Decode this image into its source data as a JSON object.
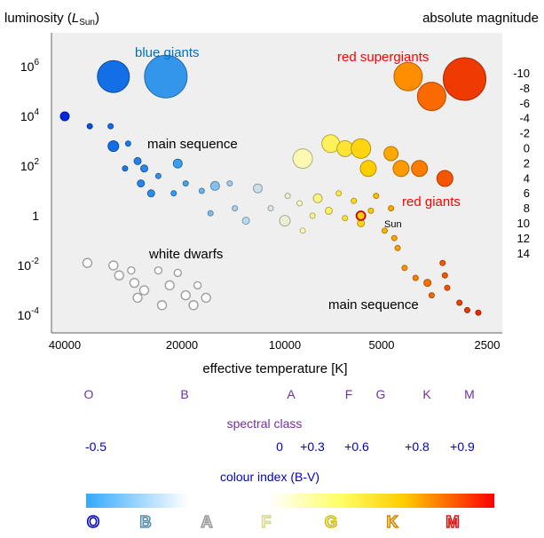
{
  "header": {
    "left_label_main": "luminosity  (",
    "left_label_L": "L",
    "left_label_sub": "Sun",
    "left_label_close": ")",
    "right_label": "absolute magnitude"
  },
  "axes": {
    "x_title": "effective temperature [K]",
    "x_ticks": [
      {
        "label": "40000",
        "value": 40000
      },
      {
        "label": "20000",
        "value": 20000
      },
      {
        "label": "10000",
        "value": 10000
      },
      {
        "label": "5000",
        "value": 5000
      },
      {
        "label": "2500",
        "value": 2500
      }
    ],
    "y_ticks": [
      {
        "base": "10",
        "exp": "6",
        "value": 6
      },
      {
        "base": "10",
        "exp": "4",
        "value": 4
      },
      {
        "base": "10",
        "exp": "2",
        "value": 2
      },
      {
        "base": "1",
        "exp": "",
        "value": 0
      },
      {
        "base": "10",
        "exp": "-2",
        "value": -2
      },
      {
        "base": "10",
        "exp": "-4",
        "value": -4
      }
    ],
    "magnitude_ticks": [
      "-10",
      "-8",
      "-6",
      "-4",
      "-2",
      "0",
      "2",
      "4",
      "6",
      "8",
      "10",
      "12",
      "14"
    ]
  },
  "region_labels": {
    "blue_giants": "blue giants",
    "red_supergiants": "red supergiants",
    "main_sequence_upper": "main sequence",
    "red_giants": "red giants",
    "white_dwarfs": "white dwarfs",
    "main_sequence_lower": "main sequence",
    "sun": "Sun"
  },
  "spectral": {
    "title": "spectral class",
    "classes": [
      "O",
      "B",
      "A",
      "F",
      "G",
      "K",
      "M"
    ]
  },
  "colour_index": {
    "title": "colour index (B-V)",
    "values": [
      "-0.5",
      "0",
      "+0.3",
      "+0.6",
      "+0.8",
      "+0.9"
    ]
  },
  "colours": {
    "panel": "#efefef",
    "purple": "#7030a0",
    "blue": "#0000cc",
    "red_label": "#ff0000",
    "blue_label": "#0070c0"
  },
  "stars": {
    "main_sequence": [
      {
        "temp": 40000,
        "log_l": 4.0,
        "r": 5
      },
      {
        "temp": 34500,
        "log_l": 3.6,
        "r": 3
      },
      {
        "temp": 30500,
        "log_l": 3.6,
        "r": 3
      },
      {
        "temp": 27500,
        "log_l": 2.9,
        "r": 3
      },
      {
        "temp": 30000,
        "log_l": 2.8,
        "r": 6
      },
      {
        "temp": 26000,
        "log_l": 2.2,
        "r": 4
      },
      {
        "temp": 28000,
        "log_l": 1.9,
        "r": 3
      },
      {
        "temp": 25000,
        "log_l": 1.9,
        "r": 4
      },
      {
        "temp": 20500,
        "log_l": 2.1,
        "r": 5
      },
      {
        "temp": 23000,
        "log_l": 1.6,
        "r": 3
      },
      {
        "temp": 19500,
        "log_l": 1.3,
        "r": 3
      },
      {
        "temp": 25500,
        "log_l": 1.3,
        "r": 4
      },
      {
        "temp": 24000,
        "log_l": 0.9,
        "r": 4
      },
      {
        "temp": 21000,
        "log_l": 0.9,
        "r": 3
      },
      {
        "temp": 17500,
        "log_l": 1.0,
        "r": 3
      },
      {
        "temp": 16000,
        "log_l": 1.2,
        "r": 5
      },
      {
        "temp": 14500,
        "log_l": 1.3,
        "r": 3
      },
      {
        "temp": 16500,
        "log_l": 0.1,
        "r": 3
      },
      {
        "temp": 14000,
        "log_l": 0.3,
        "r": 3
      },
      {
        "temp": 12000,
        "log_l": 1.1,
        "r": 5
      },
      {
        "temp": 13000,
        "log_l": -0.2,
        "r": 4
      },
      {
        "temp": 11000,
        "log_l": 0.3,
        "r": 3
      },
      {
        "temp": 10000,
        "log_l": -0.2,
        "r": 6
      },
      {
        "temp": 9000,
        "log_l": 0.5,
        "r": 3
      },
      {
        "temp": 9800,
        "log_l": 0.8,
        "r": 3
      },
      {
        "temp": 8800,
        "log_l": -0.6,
        "r": 3
      },
      {
        "temp": 8200,
        "log_l": 0.0,
        "r": 3
      },
      {
        "temp": 7900,
        "log_l": 0.7,
        "r": 5
      },
      {
        "temp": 7300,
        "log_l": 0.2,
        "r": 4
      },
      {
        "temp": 6800,
        "log_l": 0.9,
        "r": 3
      },
      {
        "temp": 6500,
        "log_l": -0.1,
        "r": 3
      },
      {
        "temp": 6100,
        "log_l": 0.6,
        "r": 3
      },
      {
        "temp": 5800,
        "log_l": -0.3,
        "r": 4
      },
      {
        "temp": 5400,
        "log_l": 0.2,
        "r": 3
      },
      {
        "temp": 5200,
        "log_l": 0.8,
        "r": 3
      },
      {
        "temp": 4900,
        "log_l": -0.6,
        "r": 3
      },
      {
        "temp": 4700,
        "log_l": 0.3,
        "r": 3
      },
      {
        "temp": 4600,
        "log_l": -0.9,
        "r": 3
      },
      {
        "temp": 4500,
        "log_l": -1.3,
        "r": 3
      },
      {
        "temp": 4300,
        "log_l": -2.1,
        "r": 3
      },
      {
        "temp": 4000,
        "log_l": -2.5,
        "r": 3
      },
      {
        "temp": 3700,
        "log_l": -2.7,
        "r": 4
      },
      {
        "temp": 3600,
        "log_l": -3.2,
        "r": 3
      },
      {
        "temp": 3350,
        "log_l": -1.9,
        "r": 3
      },
      {
        "temp": 3300,
        "log_l": -2.4,
        "r": 3
      },
      {
        "temp": 3250,
        "log_l": -2.9,
        "r": 3
      },
      {
        "temp": 3000,
        "log_l": -3.5,
        "r": 3
      },
      {
        "temp": 2850,
        "log_l": -3.8,
        "r": 3
      },
      {
        "temp": 2650,
        "log_l": -3.9,
        "r": 3
      }
    ],
    "white_dwarfs": [
      {
        "temp": 35000,
        "log_l": -1.9,
        "r": 5
      },
      {
        "temp": 30000,
        "log_l": -2.0,
        "r": 5
      },
      {
        "temp": 29000,
        "log_l": -2.4,
        "r": 5
      },
      {
        "temp": 27000,
        "log_l": -2.2,
        "r": 4
      },
      {
        "temp": 26500,
        "log_l": -2.7,
        "r": 5
      },
      {
        "temp": 26000,
        "log_l": -3.3,
        "r": 5
      },
      {
        "temp": 25000,
        "log_l": -3.0,
        "r": 5
      },
      {
        "temp": 23000,
        "log_l": -2.2,
        "r": 4
      },
      {
        "temp": 22500,
        "log_l": -3.6,
        "r": 5
      },
      {
        "temp": 21500,
        "log_l": -2.8,
        "r": 5
      },
      {
        "temp": 20500,
        "log_l": -2.3,
        "r": 4
      },
      {
        "temp": 19500,
        "log_l": -3.2,
        "r": 5
      },
      {
        "temp": 18500,
        "log_l": -3.6,
        "r": 5
      },
      {
        "temp": 18000,
        "log_l": -2.8,
        "r": 4
      },
      {
        "temp": 17000,
        "log_l": -3.3,
        "r": 5
      }
    ],
    "giants": [
      {
        "temp": 30000,
        "log_l": 5.6,
        "r": 18
      },
      {
        "temp": 22000,
        "log_l": 5.6,
        "r": 24
      },
      {
        "temp": 8800,
        "log_l": 2.3,
        "r": 11
      },
      {
        "temp": 7200,
        "log_l": 2.9,
        "r": 10
      },
      {
        "temp": 6500,
        "log_l": 2.7,
        "r": 9
      },
      {
        "temp": 5800,
        "log_l": 2.7,
        "r": 11
      },
      {
        "temp": 5500,
        "log_l": 1.9,
        "r": 9
      },
      {
        "temp": 4700,
        "log_l": 2.5,
        "r": 8
      },
      {
        "temp": 4400,
        "log_l": 1.9,
        "r": 9
      },
      {
        "temp": 3900,
        "log_l": 1.9,
        "r": 9
      },
      {
        "temp": 3300,
        "log_l": 1.5,
        "r": 9
      },
      {
        "temp": 4200,
        "log_l": 5.6,
        "r": 16
      },
      {
        "temp": 3600,
        "log_l": 4.8,
        "r": 16
      },
      {
        "temp": 2900,
        "log_l": 5.5,
        "r": 24
      }
    ],
    "sun": {
      "temp": 5800,
      "log_l": 0.0,
      "r": 5
    }
  }
}
